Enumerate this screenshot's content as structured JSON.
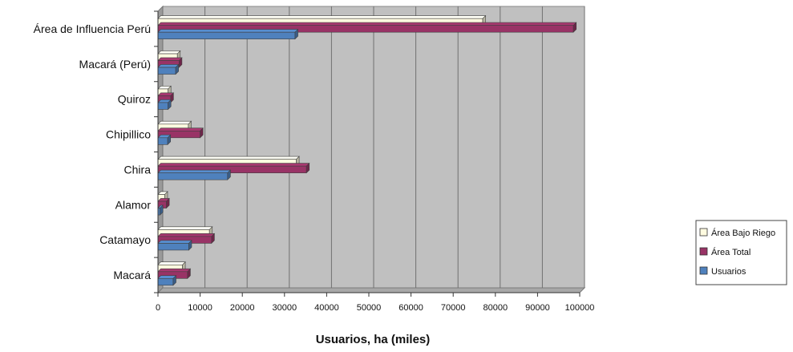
{
  "chart_data": {
    "type": "bar",
    "orientation": "horizontal",
    "style": "3d-clustered",
    "categories": [
      "Área de Influencia Perú",
      "Macará (Perú)",
      "Quiroz",
      "Chipillico",
      "Chira",
      "Alamor",
      "Catamayo",
      "Macará"
    ],
    "series": [
      {
        "name": "Área Bajo Riego",
        "color": "#fffbe0",
        "values": [
          77000,
          4600,
          2400,
          7200,
          32800,
          1600,
          12200,
          5800
        ]
      },
      {
        "name": "Área Total",
        "color": "#993366",
        "values": [
          98500,
          5000,
          3000,
          10000,
          35200,
          2000,
          12700,
          7000
        ]
      },
      {
        "name": "Usuarios",
        "color": "#4f81bd",
        "values": [
          32500,
          4200,
          2400,
          2300,
          16500,
          500,
          7300,
          3600
        ]
      }
    ],
    "xlabel": "Usuarios, ha (miles)",
    "xlim": [
      0,
      100000
    ],
    "x_ticks": [
      "0",
      "10000",
      "20000",
      "30000",
      "40000",
      "50000",
      "60000",
      "70000",
      "80000",
      "90000",
      "100000"
    ],
    "grid": true,
    "legend": "right"
  }
}
